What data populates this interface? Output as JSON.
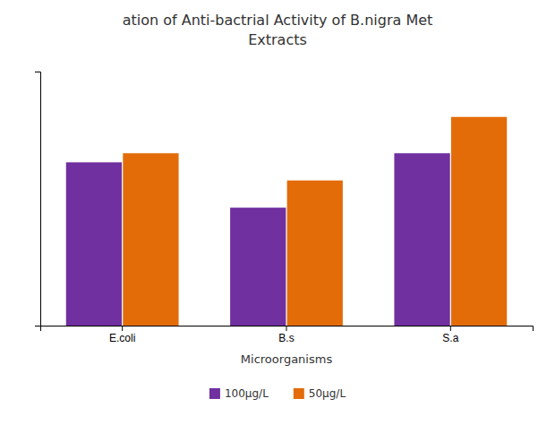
{
  "chart_data": {
    "type": "bar",
    "title": "ation of Anti-bactrial Activity of B.nigra Met\nExtracts",
    "categories": [
      "E.coli",
      "B.s",
      "S.a"
    ],
    "series": [
      {
        "name": "100μg/L",
        "color": "#7030A0",
        "values": [
          18,
          13,
          19
        ]
      },
      {
        "name": "50μg/L",
        "color": "#E36C09",
        "values": [
          19,
          16,
          23
        ]
      }
    ],
    "xlabel": "Microorganisms",
    "ylim": [
      0,
      28
    ],
    "yticks": [],
    "grid": false,
    "legend": "bottom",
    "tick_labels": "x"
  }
}
